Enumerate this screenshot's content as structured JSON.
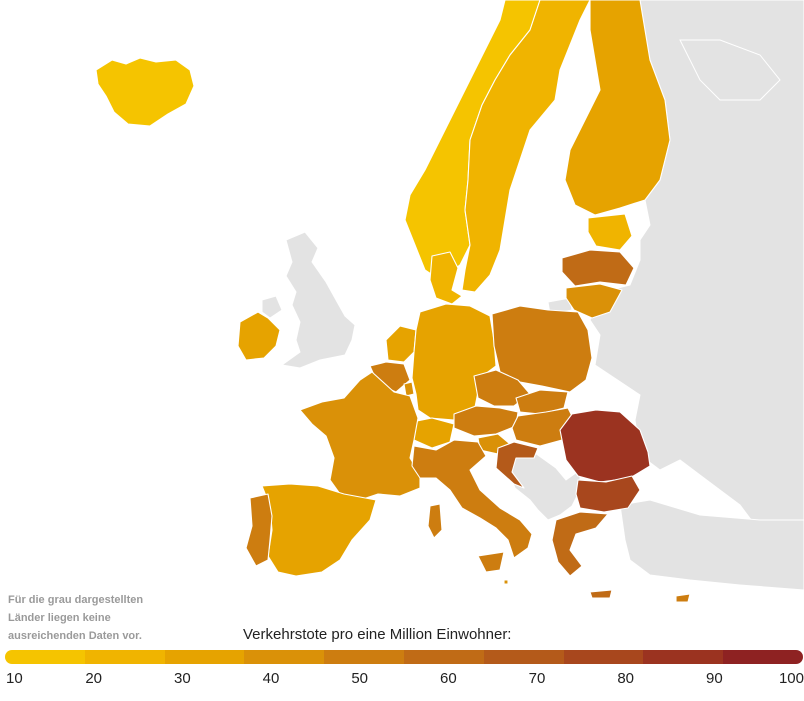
{
  "legend": {
    "title": "Verkehrstote pro eine Million Einwohner:",
    "ticks": [
      "10",
      "20",
      "30",
      "40",
      "50",
      "60",
      "70",
      "80",
      "90",
      "100"
    ],
    "colors": [
      "#f5c400",
      "#f0b400",
      "#e6a300",
      "#da9108",
      "#cd7d10",
      "#c06b16",
      "#b45a1a",
      "#a8471d",
      "#9b3320",
      "#8e2222"
    ]
  },
  "note": {
    "line1": "Für die grau dargestellten",
    "line2": "Länder liegen keine",
    "line3": "ausreichenden Daten vor."
  },
  "colors": {
    "no_data": "#e3e3e3",
    "border": "#ffffff"
  },
  "map": {
    "countries": [
      {
        "name": "Iceland",
        "value": 15
      },
      {
        "name": "Norway",
        "value": 18
      },
      {
        "name": "Sweden",
        "value": 20
      },
      {
        "name": "Finland",
        "value": 38
      },
      {
        "name": "Estonia",
        "value": 28
      },
      {
        "name": "Latvia",
        "value": 65
      },
      {
        "name": "Lithuania",
        "value": 42
      },
      {
        "name": "Denmark",
        "value": 27
      },
      {
        "name": "Ireland",
        "value": 34
      },
      {
        "name": "Netherlands",
        "value": 33
      },
      {
        "name": "Belgium",
        "value": 55
      },
      {
        "name": "Luxembourg",
        "value": 45
      },
      {
        "name": "Germany",
        "value": 37
      },
      {
        "name": "Poland",
        "value": 55
      },
      {
        "name": "Czechia",
        "value": 57
      },
      {
        "name": "Slovakia",
        "value": 50
      },
      {
        "name": "Austria",
        "value": 50
      },
      {
        "name": "Switzerland",
        "value": 30
      },
      {
        "name": "Hungary",
        "value": 55
      },
      {
        "name": "Slovenia",
        "value": 48
      },
      {
        "name": "Croatia",
        "value": 75
      },
      {
        "name": "France",
        "value": 47
      },
      {
        "name": "Spain",
        "value": 39
      },
      {
        "name": "Portugal",
        "value": 55
      },
      {
        "name": "Italy",
        "value": 54
      },
      {
        "name": "Romania",
        "value": 95
      },
      {
        "name": "Bulgaria",
        "value": 85
      },
      {
        "name": "Greece",
        "value": 68
      },
      {
        "name": "Cyprus",
        "value": 55
      },
      {
        "name": "Malta",
        "value": 45
      }
    ]
  }
}
